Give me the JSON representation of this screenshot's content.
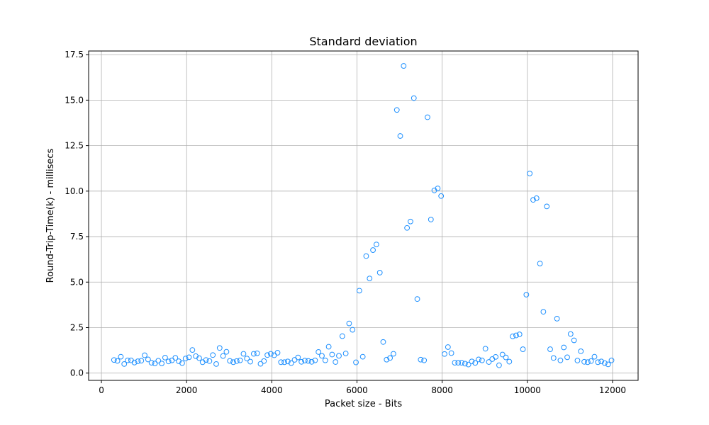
{
  "chart_data": {
    "type": "scatter",
    "title": "Standard deviation",
    "xlabel": "Packet size - Bits",
    "ylabel": "Round-Trip-Time(k) - millisecs",
    "xlim": [
      -300,
      12600
    ],
    "ylim": [
      -0.4,
      17.7
    ],
    "xticks": [
      0,
      2000,
      4000,
      6000,
      8000,
      10000,
      12000
    ],
    "xtick_labels": [
      "0",
      "2000",
      "4000",
      "6000",
      "8000",
      "10000",
      "12000"
    ],
    "yticks": [
      0,
      2.5,
      5,
      7.5,
      10,
      12.5,
      15,
      17.5
    ],
    "ytick_labels": [
      "0.0",
      "2.5",
      "5.0",
      "7.5",
      "10.0",
      "12.5",
      "15.0",
      "17.5"
    ],
    "grid": true,
    "marker_color": "#1e90ff",
    "series": [
      {
        "x": [
          296,
          376,
          456,
          536,
          616,
          696,
          776,
          856,
          936,
          1016,
          1096,
          1176,
          1256,
          1336,
          1416,
          1496,
          1576,
          1656,
          1736,
          1816,
          1896,
          1976,
          2056,
          2136,
          2216,
          2296,
          2376,
          2456,
          2536,
          2616,
          2696,
          2776,
          2856,
          2936,
          3016,
          3096,
          3176,
          3256,
          3336,
          3416,
          3496,
          3576,
          3656,
          3736,
          3816,
          3896,
          3976,
          4056,
          4136,
          4216,
          4296,
          4376,
          4456,
          4536,
          4616,
          4696,
          4776,
          4856,
          4936,
          5016,
          5096,
          5176,
          5256,
          5336,
          5416,
          5496,
          5576,
          5656,
          5736,
          5816,
          5896,
          5976,
          6056,
          6136,
          6216,
          6296,
          6376,
          6456,
          6536,
          6616,
          6696,
          6776,
          6856,
          6936,
          7016,
          7096,
          7176,
          7256,
          7336,
          7416,
          7496,
          7576,
          7656,
          7736,
          7816,
          7896,
          7976,
          8056,
          8136,
          8216,
          8296,
          8376,
          8456,
          8536,
          8616,
          8696,
          8776,
          8856,
          8936,
          9016,
          9096,
          9176,
          9256,
          9336,
          9416,
          9496,
          9576,
          9656,
          9736,
          9816,
          9896,
          9976,
          10056,
          10136,
          10216,
          10296,
          10376,
          10456,
          10536,
          10616,
          10696,
          10776,
          10856,
          10936,
          11016,
          11096,
          11176,
          11256,
          11336,
          11416,
          11496,
          11576,
          11656,
          11736,
          11816,
          11896,
          11976
        ],
        "y": [
          0.72,
          0.67,
          0.9,
          0.5,
          0.7,
          0.7,
          0.58,
          0.65,
          0.68,
          0.98,
          0.75,
          0.57,
          0.53,
          0.68,
          0.53,
          0.85,
          0.64,
          0.7,
          0.84,
          0.65,
          0.55,
          0.8,
          0.87,
          1.27,
          0.93,
          0.82,
          0.6,
          0.72,
          0.66,
          0.99,
          0.5,
          1.38,
          0.94,
          1.17,
          0.67,
          0.6,
          0.66,
          0.7,
          1.06,
          0.8,
          0.63,
          1.06,
          1.09,
          0.51,
          0.66,
          0.99,
          1.06,
          0.98,
          1.12,
          0.6,
          0.6,
          0.64,
          0.55,
          0.73,
          0.86,
          0.62,
          0.69,
          0.67,
          0.62,
          0.7,
          1.16,
          0.95,
          0.7,
          1.45,
          1.02,
          0.61,
          0.95,
          2.03,
          1.08,
          2.73,
          2.38,
          0.59,
          4.53,
          0.9,
          6.43,
          5.2,
          6.76,
          7.07,
          5.52,
          1.71,
          0.74,
          0.83,
          1.06,
          14.46,
          13.03,
          16.88,
          7.98,
          8.33,
          15.11,
          4.07,
          0.74,
          0.7,
          14.06,
          8.44,
          10.04,
          10.15,
          9.73,
          1.05,
          1.43,
          1.1,
          0.57,
          0.57,
          0.57,
          0.52,
          0.47,
          0.64,
          0.56,
          0.75,
          0.7,
          1.34,
          0.61,
          0.77,
          0.89,
          0.43,
          1.02,
          0.86,
          0.63,
          2.02,
          2.07,
          2.13,
          1.31,
          4.31,
          10.97,
          9.52,
          9.61,
          6.02,
          3.37,
          9.16,
          1.31,
          0.83,
          2.99,
          0.7,
          1.41,
          0.87,
          2.15,
          1.8,
          0.69,
          1.2,
          0.62,
          0.6,
          0.66,
          0.9,
          0.6,
          0.64,
          0.55,
          0.48,
          0.7
        ]
      }
    ]
  }
}
